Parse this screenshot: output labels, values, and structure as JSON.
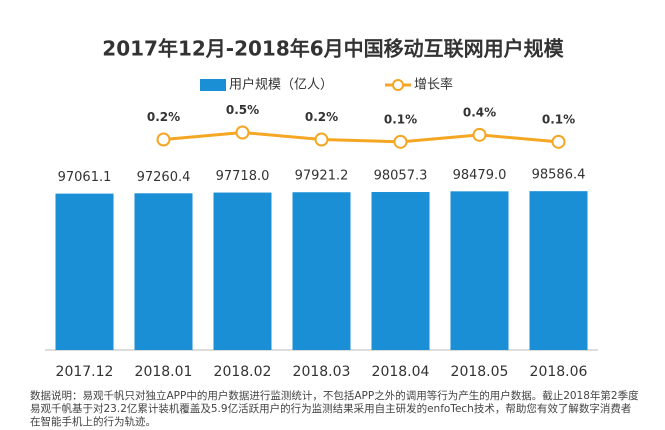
{
  "chart_data": {
    "type": "bar",
    "title": "2017年12月-2018年6月中国移动互联网用户规模",
    "categories": [
      "2017.12",
      "2018.01",
      "2018.02",
      "2018.03",
      "2018.04",
      "2018.05",
      "2018.06"
    ],
    "series": [
      {
        "name": "用户规模（亿人）",
        "type": "bar",
        "color": "#1a8fd6",
        "values": [
          97061.1,
          97260.4,
          97718.0,
          97921.2,
          98057.3,
          98479.0,
          98586.4
        ],
        "value_labels": [
          "97061.1",
          "97260.4",
          "97718.0",
          "97921.2",
          "98057.3",
          "98479.0",
          "98586.4"
        ]
      },
      {
        "name": "增长率",
        "type": "line",
        "axis": "y2",
        "color": "#f5a623",
        "values": [
          null,
          0.2,
          0.5,
          0.2,
          0.1,
          0.4,
          0.1
        ],
        "value_labels": [
          null,
          "0.2%",
          "0.5%",
          "0.2%",
          "0.1%",
          "0.4%",
          "0.1%"
        ]
      }
    ],
    "ylim": [
      0,
      180000
    ],
    "y2lim": [
      -8.8,
      3.6
    ],
    "legend": "top",
    "note": "数据说明：易观千帆只对独立APP中的用户数据进行监测统计，不包括APP之外的调用等行为产生的用户数据。截止2018年第2季度易观千帆基于对23.2亿累计装机覆盖及5.9亿活跃用户的行为监测结果采用自主研发的enfoTech技术，帮助您有效了解数字消费者在智能手机上的行为轨迹。"
  }
}
